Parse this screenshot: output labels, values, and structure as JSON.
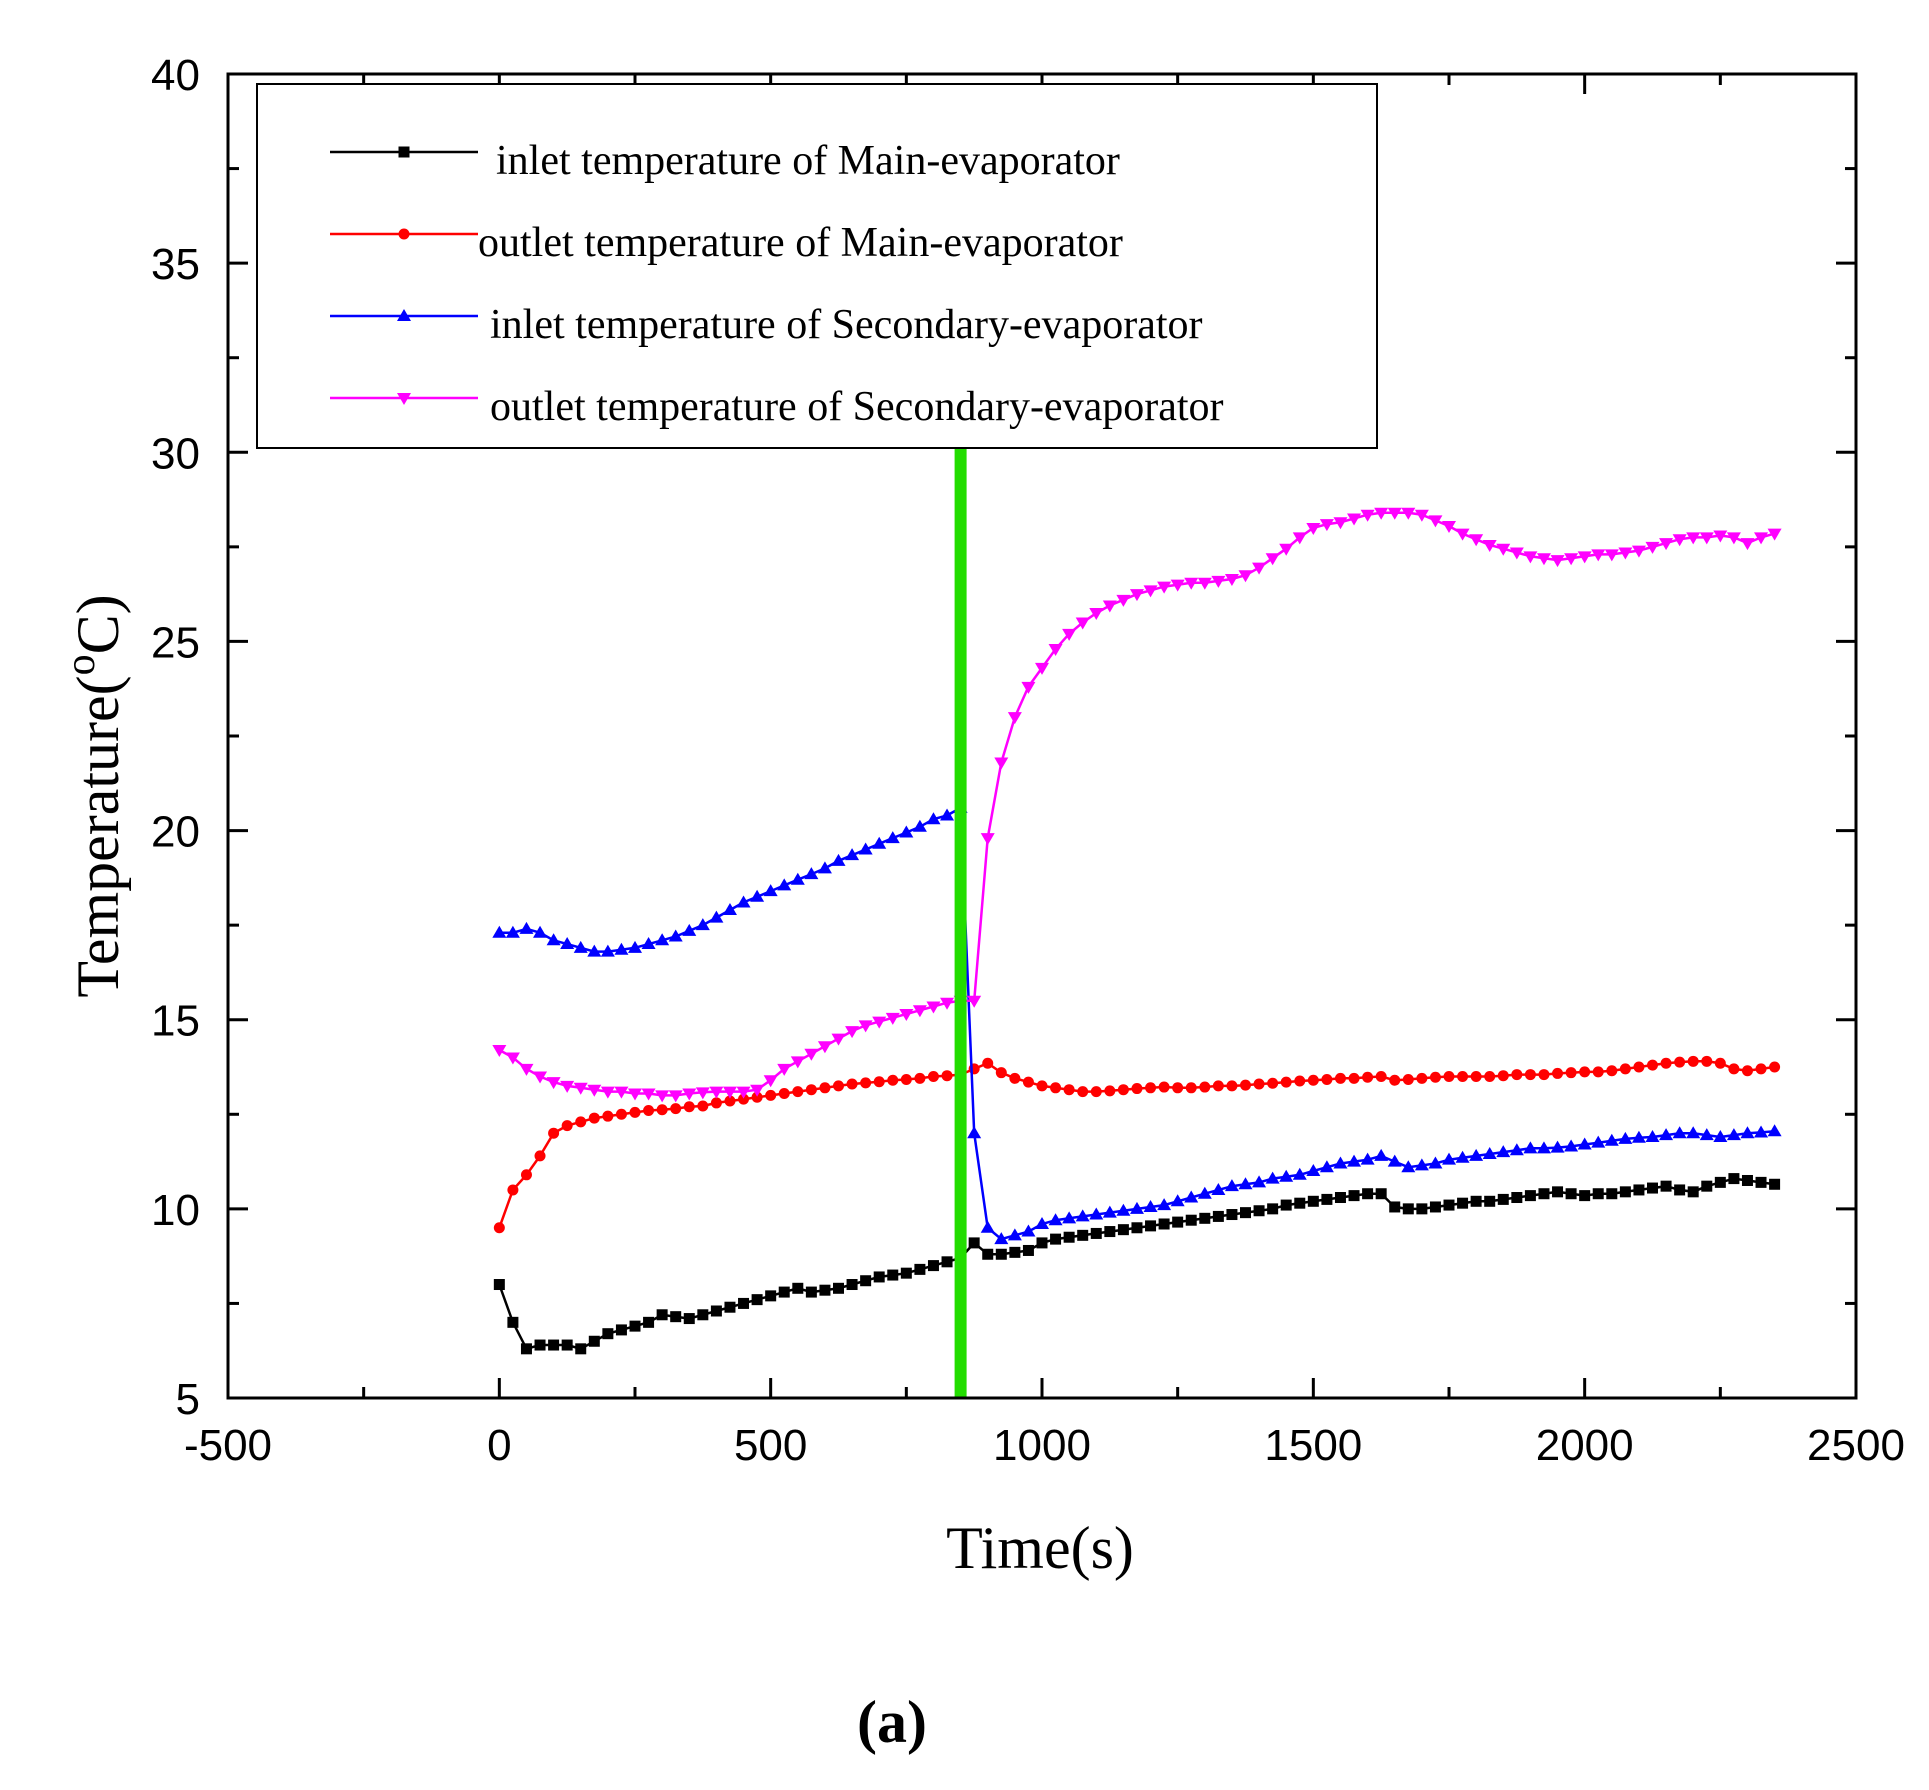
{
  "chart_data": {
    "type": "line",
    "title": "",
    "panel_label": "(a)",
    "xlabel": "Time(s)",
    "ylabel_main": "Temperature(",
    "ylabel_sup": "o",
    "ylabel_unit": "C)",
    "xlim": [
      -500,
      2500
    ],
    "ylim": [
      5,
      40
    ],
    "xticks": [
      -500,
      0,
      500,
      1000,
      1500,
      2000,
      2500
    ],
    "yticks": [
      5,
      10,
      15,
      20,
      25,
      30,
      35,
      40
    ],
    "legend_position": "top-left",
    "marker_line": {
      "x": 850,
      "color": "#22dd00"
    },
    "series": [
      {
        "name": "inlet temperature of Main-evaporator",
        "color": "#000000",
        "marker": "square",
        "x": [
          0,
          25,
          50,
          75,
          100,
          125,
          150,
          175,
          200,
          225,
          250,
          275,
          300,
          325,
          350,
          375,
          400,
          425,
          450,
          475,
          500,
          525,
          550,
          575,
          600,
          625,
          650,
          675,
          700,
          725,
          750,
          775,
          800,
          825,
          850,
          875,
          900,
          925,
          950,
          975,
          1000,
          1025,
          1050,
          1075,
          1100,
          1125,
          1150,
          1175,
          1200,
          1225,
          1250,
          1275,
          1300,
          1325,
          1350,
          1375,
          1400,
          1425,
          1450,
          1475,
          1500,
          1525,
          1550,
          1575,
          1600,
          1625,
          1650,
          1675,
          1700,
          1725,
          1750,
          1775,
          1800,
          1825,
          1850,
          1875,
          1900,
          1925,
          1950,
          1975,
          2000,
          2025,
          2050,
          2075,
          2100,
          2125,
          2150,
          2175,
          2200,
          2225,
          2250,
          2275,
          2300,
          2325,
          2350
        ],
        "y": [
          8.0,
          7.0,
          6.3,
          6.4,
          6.4,
          6.4,
          6.3,
          6.5,
          6.7,
          6.8,
          6.9,
          7.0,
          7.2,
          7.15,
          7.1,
          7.2,
          7.3,
          7.4,
          7.5,
          7.6,
          7.7,
          7.8,
          7.9,
          7.8,
          7.85,
          7.9,
          8.0,
          8.1,
          8.2,
          8.25,
          8.3,
          8.4,
          8.5,
          8.6,
          8.7,
          9.1,
          8.8,
          8.8,
          8.85,
          8.9,
          9.1,
          9.2,
          9.25,
          9.3,
          9.35,
          9.4,
          9.45,
          9.5,
          9.55,
          9.6,
          9.65,
          9.7,
          9.75,
          9.8,
          9.85,
          9.9,
          9.95,
          10.0,
          10.1,
          10.15,
          10.2,
          10.25,
          10.3,
          10.35,
          10.4,
          10.4,
          10.05,
          10.0,
          10.0,
          10.05,
          10.1,
          10.15,
          10.2,
          10.2,
          10.25,
          10.3,
          10.35,
          10.4,
          10.45,
          10.4,
          10.35,
          10.4,
          10.4,
          10.45,
          10.5,
          10.55,
          10.6,
          10.5,
          10.45,
          10.6,
          10.7,
          10.8,
          10.75,
          10.7,
          10.65
        ]
      },
      {
        "name": "outlet temperature of Main-evaporator",
        "color": "#ff0000",
        "marker": "circle",
        "x": [
          0,
          25,
          50,
          75,
          100,
          125,
          150,
          175,
          200,
          225,
          250,
          275,
          300,
          325,
          350,
          375,
          400,
          425,
          450,
          475,
          500,
          525,
          550,
          575,
          600,
          625,
          650,
          675,
          700,
          725,
          750,
          775,
          800,
          825,
          850,
          875,
          900,
          925,
          950,
          975,
          1000,
          1025,
          1050,
          1075,
          1100,
          1125,
          1150,
          1175,
          1200,
          1225,
          1250,
          1275,
          1300,
          1325,
          1350,
          1375,
          1400,
          1425,
          1450,
          1475,
          1500,
          1525,
          1550,
          1575,
          1600,
          1625,
          1650,
          1675,
          1700,
          1725,
          1750,
          1775,
          1800,
          1825,
          1850,
          1875,
          1900,
          1925,
          1950,
          1975,
          2000,
          2025,
          2050,
          2075,
          2100,
          2125,
          2150,
          2175,
          2200,
          2225,
          2250,
          2275,
          2300,
          2325,
          2350
        ],
        "y": [
          9.5,
          10.5,
          10.9,
          11.4,
          12.0,
          12.2,
          12.3,
          12.4,
          12.45,
          12.5,
          12.55,
          12.6,
          12.62,
          12.65,
          12.7,
          12.72,
          12.8,
          12.85,
          12.9,
          12.95,
          13.0,
          13.05,
          13.1,
          13.15,
          13.2,
          13.25,
          13.3,
          13.33,
          13.36,
          13.4,
          13.42,
          13.45,
          13.5,
          13.52,
          13.55,
          13.7,
          13.85,
          13.6,
          13.45,
          13.35,
          13.25,
          13.2,
          13.15,
          13.1,
          13.1,
          13.12,
          13.15,
          13.18,
          13.2,
          13.22,
          13.2,
          13.2,
          13.22,
          13.25,
          13.25,
          13.27,
          13.3,
          13.32,
          13.35,
          13.38,
          13.4,
          13.42,
          13.45,
          13.45,
          13.48,
          13.5,
          13.4,
          13.42,
          13.45,
          13.48,
          13.5,
          13.5,
          13.5,
          13.5,
          13.52,
          13.55,
          13.55,
          13.55,
          13.58,
          13.6,
          13.62,
          13.62,
          13.65,
          13.7,
          13.75,
          13.8,
          13.85,
          13.88,
          13.9,
          13.9,
          13.85,
          13.7,
          13.65,
          13.7,
          13.75
        ]
      },
      {
        "name": "inlet temperature of Secondary-evaporator",
        "color": "#0000ff",
        "marker": "triangle-up",
        "x": [
          0,
          25,
          50,
          75,
          100,
          125,
          150,
          175,
          200,
          225,
          250,
          275,
          300,
          325,
          350,
          375,
          400,
          425,
          450,
          475,
          500,
          525,
          550,
          575,
          600,
          625,
          650,
          675,
          700,
          725,
          750,
          775,
          800,
          825,
          850,
          875,
          900,
          925,
          950,
          975,
          1000,
          1025,
          1050,
          1075,
          1100,
          1125,
          1150,
          1175,
          1200,
          1225,
          1250,
          1275,
          1300,
          1325,
          1350,
          1375,
          1400,
          1425,
          1450,
          1475,
          1500,
          1525,
          1550,
          1575,
          1600,
          1625,
          1650,
          1675,
          1700,
          1725,
          1750,
          1775,
          1800,
          1825,
          1850,
          1875,
          1900,
          1925,
          1950,
          1975,
          2000,
          2025,
          2050,
          2075,
          2100,
          2125,
          2150,
          2175,
          2200,
          2225,
          2250,
          2275,
          2300,
          2325,
          2350
        ],
        "y": [
          17.3,
          17.3,
          17.4,
          17.3,
          17.1,
          17.0,
          16.9,
          16.8,
          16.8,
          16.85,
          16.9,
          17.0,
          17.1,
          17.2,
          17.35,
          17.5,
          17.7,
          17.9,
          18.1,
          18.25,
          18.4,
          18.55,
          18.7,
          18.85,
          19.0,
          19.2,
          19.35,
          19.5,
          19.65,
          19.8,
          19.95,
          20.1,
          20.3,
          20.4,
          20.6,
          12.0,
          9.5,
          9.2,
          9.3,
          9.4,
          9.6,
          9.7,
          9.75,
          9.8,
          9.85,
          9.9,
          9.95,
          10.0,
          10.05,
          10.1,
          10.2,
          10.3,
          10.4,
          10.5,
          10.6,
          10.65,
          10.7,
          10.8,
          10.85,
          10.9,
          11.0,
          11.1,
          11.2,
          11.25,
          11.3,
          11.4,
          11.25,
          11.1,
          11.15,
          11.2,
          11.3,
          11.35,
          11.4,
          11.45,
          11.5,
          11.55,
          11.6,
          11.6,
          11.62,
          11.65,
          11.7,
          11.75,
          11.8,
          11.85,
          11.88,
          11.9,
          11.95,
          12.0,
          12.0,
          11.95,
          11.9,
          11.95,
          12.0,
          12.02,
          12.05
        ]
      },
      {
        "name": "outlet temperature of Secondary-evaporator",
        "color": "#ff00ff",
        "marker": "triangle-down",
        "x": [
          0,
          25,
          50,
          75,
          100,
          125,
          150,
          175,
          200,
          225,
          250,
          275,
          300,
          325,
          350,
          375,
          400,
          425,
          450,
          475,
          500,
          525,
          550,
          575,
          600,
          625,
          650,
          675,
          700,
          725,
          750,
          775,
          800,
          825,
          850,
          875,
          900,
          925,
          950,
          975,
          1000,
          1025,
          1050,
          1075,
          1100,
          1125,
          1150,
          1175,
          1200,
          1225,
          1250,
          1275,
          1300,
          1325,
          1350,
          1375,
          1400,
          1425,
          1450,
          1475,
          1500,
          1525,
          1550,
          1575,
          1600,
          1625,
          1650,
          1675,
          1700,
          1725,
          1750,
          1775,
          1800,
          1825,
          1850,
          1875,
          1900,
          1925,
          1950,
          1975,
          2000,
          2025,
          2050,
          2075,
          2100,
          2125,
          2150,
          2175,
          2200,
          2225,
          2250,
          2275,
          2300,
          2325,
          2350
        ],
        "y": [
          14.2,
          14.0,
          13.7,
          13.5,
          13.35,
          13.25,
          13.2,
          13.15,
          13.1,
          13.1,
          13.05,
          13.05,
          13.0,
          13.0,
          13.05,
          13.08,
          13.1,
          13.1,
          13.1,
          13.15,
          13.4,
          13.7,
          13.9,
          14.1,
          14.3,
          14.5,
          14.7,
          14.85,
          14.95,
          15.05,
          15.15,
          15.25,
          15.35,
          15.45,
          15.5,
          15.5,
          19.8,
          21.8,
          23.0,
          23.8,
          24.3,
          24.8,
          25.2,
          25.5,
          25.75,
          25.95,
          26.1,
          26.25,
          26.35,
          26.45,
          26.5,
          26.55,
          26.55,
          26.6,
          26.65,
          26.75,
          26.95,
          27.2,
          27.45,
          27.75,
          28.0,
          28.1,
          28.15,
          28.25,
          28.35,
          28.4,
          28.4,
          28.4,
          28.35,
          28.2,
          28.05,
          27.85,
          27.7,
          27.55,
          27.45,
          27.35,
          27.25,
          27.2,
          27.15,
          27.2,
          27.25,
          27.3,
          27.3,
          27.35,
          27.4,
          27.5,
          27.6,
          27.7,
          27.75,
          27.75,
          27.8,
          27.75,
          27.6,
          27.75,
          27.85
        ]
      }
    ]
  }
}
